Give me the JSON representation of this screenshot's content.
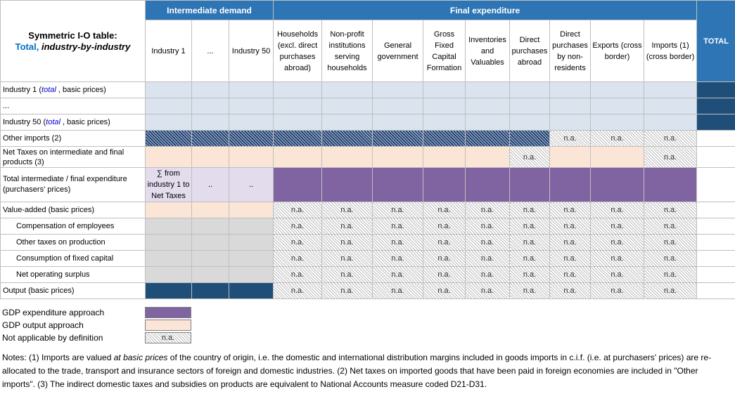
{
  "title": {
    "line1": "Symmetric I-O table:",
    "line2_blue": "Total,",
    "line2_italic": "industry-by-industry"
  },
  "groups": {
    "intermediate": "Intermediate demand",
    "final": "Final expenditure",
    "total": "TOTAL"
  },
  "columns": {
    "ind1": "Industry 1",
    "dots": "...",
    "ind50": "Industry 50",
    "households": "Households (excl. direct purchases abroad)",
    "npish": "Non-profit institutions serving households",
    "gov": "General government",
    "gfcf": "Gross Fixed Capital Formation",
    "inv": "Inventories and Valuables",
    "dpa": "Direct purchases abroad",
    "dpnr": "Direct purchases by non-residents",
    "exports": "Exports (cross border)",
    "imports": "Imports (1) (cross border)"
  },
  "rows": {
    "ind1_a": "Industry 1 (",
    "ind1_b": "total",
    "ind1_c": " , basic prices)",
    "dots": "...",
    "ind50_a": "Industry 50 (",
    "ind50_b": "total",
    "ind50_c": " , basic prices)",
    "other_imports": "Other imports (2)",
    "net_taxes": "Net Taxes on intermediate and final products (3)",
    "total_exp": "Total intermediate / final expenditure (purchasers' prices)",
    "va": "Value-added (basic prices)",
    "comp": "Compensation of employees",
    "otax": "Other taxes on production",
    "cfc": "Consumption of fixed capital",
    "nos": "Net operating surplus",
    "output": "Output (basic prices)"
  },
  "cells": {
    "na": "n.a.",
    "sum": "∑ from industry 1 to Net Taxes",
    "dd": ".."
  },
  "legend": {
    "gdp_exp": "GDP expenditure approach",
    "gdp_out": "GDP output approach",
    "not_app": "Not applicable by definition",
    "na": "n.a."
  },
  "notes": {
    "p1": "Notes: (1) Imports are valued ",
    "p1_it": "at basic prices",
    "p2": "  of the country of origin, i.e. the domestic and international distribution margins included in goods imports in c.i.f. (i.e. at purchasers' prices) are re-allocated to the trade, transport and insurance sectors of foreign and domestic industries. (2) Net taxes on imported goods that have been paid in foreign economies are included in \"Other imports\". (3) The indirect domestic taxes and subsidies on products are equivalent to National Accounts measure coded D21-D31."
  },
  "colors": {
    "header_blue": "#2e75b6",
    "dark_blue": "#1f4e79",
    "light_blue": "#dae3ee",
    "peach": "#fbe5d6",
    "purple": "#8064a2",
    "grey": "#d9d9d9"
  }
}
